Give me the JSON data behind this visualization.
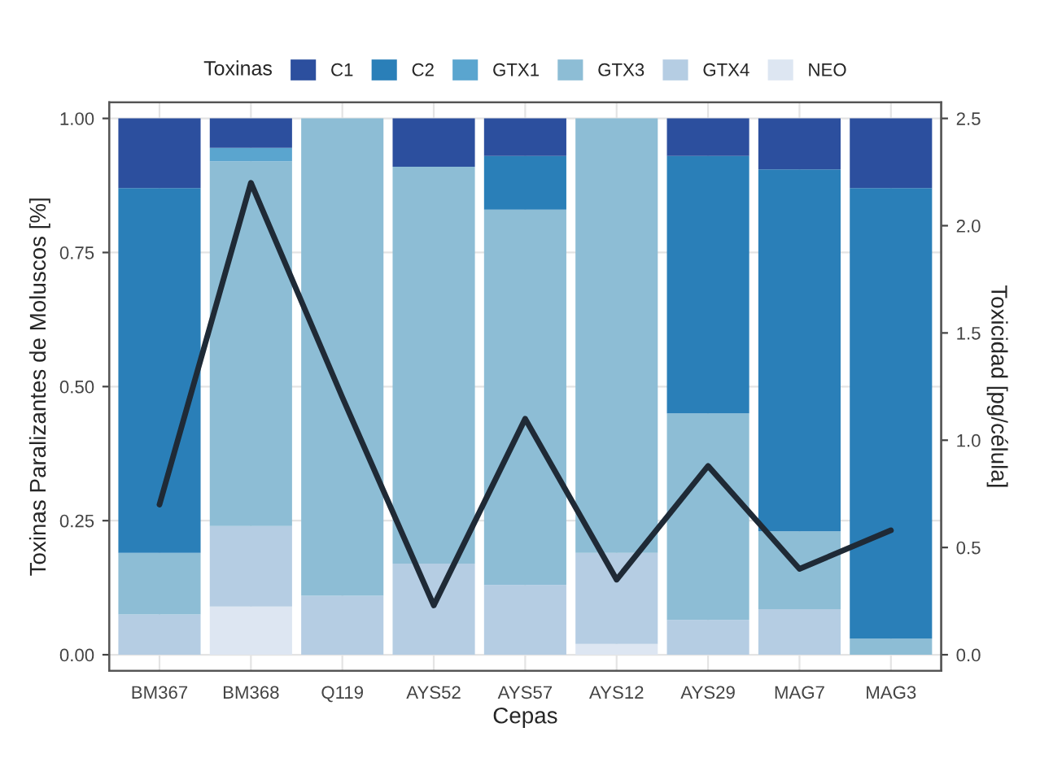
{
  "chart_data": {
    "type": "bar",
    "stacked": true,
    "xlabel": "Cepas",
    "ylabel": "Toxinas Paralizantes de Moluscos [%]",
    "y2label": "Toxicidad [pg/célula]",
    "legend_title": "Toxinas",
    "legend": "top",
    "grid": true,
    "categories": [
      "BM367",
      "BM368",
      "Q119",
      "AYS52",
      "AYS57",
      "AYS12",
      "AYS29",
      "MAG7",
      "MAG3"
    ],
    "series": [
      {
        "name": "NEO",
        "color": "#dde6f2",
        "values": [
          0,
          0.09,
          0,
          0,
          0,
          0.02,
          0,
          0,
          0
        ]
      },
      {
        "name": "GTX4",
        "color": "#b5cde3",
        "values": [
          0.075,
          0.15,
          0.11,
          0.17,
          0.13,
          0.17,
          0.065,
          0.085,
          0
        ]
      },
      {
        "name": "GTX3",
        "color": "#8dbdd5",
        "values": [
          0.115,
          0.68,
          0.89,
          0.74,
          0.7,
          0.81,
          0.385,
          0.145,
          0.03
        ]
      },
      {
        "name": "GTX1",
        "color": "#5aa5cf",
        "values": [
          0,
          0.025,
          0,
          0,
          0,
          0,
          0,
          0,
          0
        ]
      },
      {
        "name": "C2",
        "color": "#2a7fb8",
        "values": [
          0.68,
          0,
          0,
          0,
          0.1,
          0,
          0.48,
          0.675,
          0.84
        ]
      },
      {
        "name": "C1",
        "color": "#2c4f9e",
        "values": [
          0.13,
          0.055,
          0,
          0.09,
          0.07,
          0,
          0.07,
          0.095,
          0.13
        ]
      },
      {
        "type": "line",
        "axis": "y2",
        "color": "#1f2a36",
        "values": [
          0.7,
          2.2,
          1.2,
          0.23,
          1.1,
          0.35,
          0.88,
          0.4,
          0.58
        ]
      }
    ],
    "ylim": [
      -0.03,
      1.03
    ],
    "yticks": [
      {
        "value": 0,
        "label": "0.00"
      },
      0.25,
      {
        "value": 0.5,
        "label": "0.50"
      },
      0.75,
      {
        "value": 1,
        "label": "1.00"
      }
    ],
    "y2lim": [
      -0.075,
      2.575
    ],
    "y2ticks": [
      {
        "value": 0,
        "label": "0.0"
      },
      0.5,
      {
        "value": 1,
        "label": "1.0"
      },
      1.5,
      {
        "value": 2,
        "label": "2.0"
      },
      2.5
    ]
  }
}
